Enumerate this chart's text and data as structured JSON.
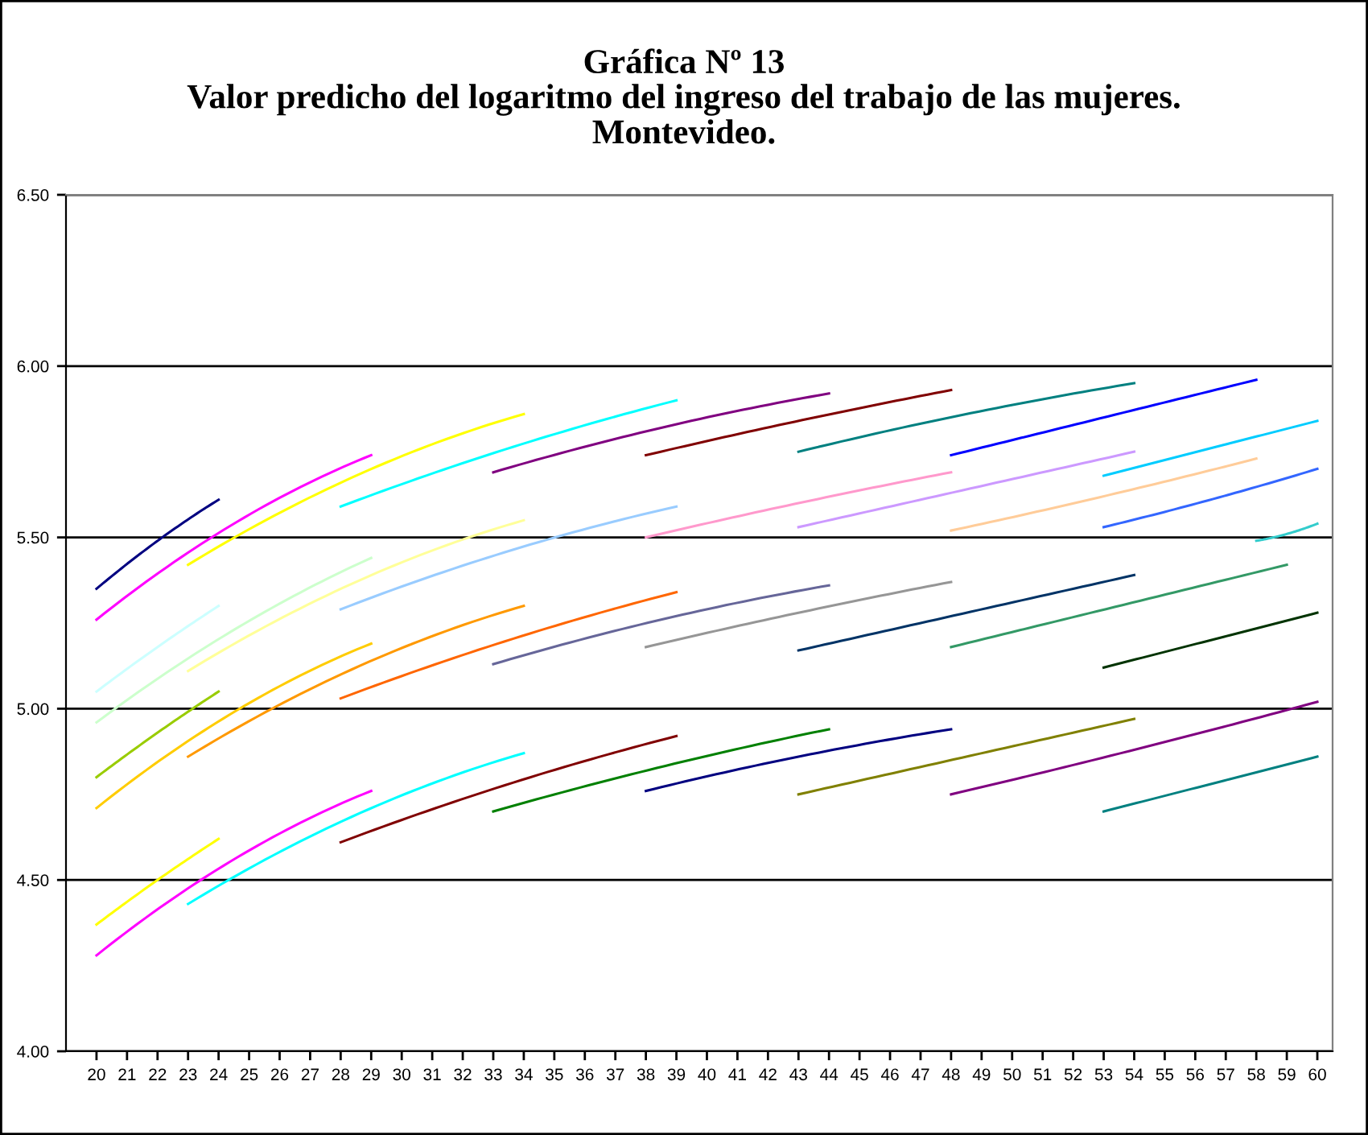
{
  "chart_data": {
    "type": "line",
    "title": "Gráfica Nº 13\nValor predicho del logaritmo del ingreso del trabajo de las mujeres.\nMontevideo.",
    "xlim": [
      19,
      60.5
    ],
    "xticks": [
      20,
      21,
      22,
      23,
      24,
      25,
      26,
      27,
      28,
      29,
      30,
      31,
      32,
      33,
      34,
      35,
      36,
      37,
      38,
      39,
      40,
      41,
      42,
      43,
      44,
      45,
      46,
      47,
      48,
      49,
      50,
      51,
      52,
      53,
      54,
      55,
      56,
      57,
      58,
      59,
      60
    ],
    "ylim": [
      4.0,
      6.5
    ],
    "yticks": [
      {
        "value": 4.0,
        "label": "4.00"
      },
      {
        "value": 4.5,
        "label": "4.50"
      },
      {
        "value": 5.0,
        "label": "5.00"
      },
      {
        "value": 5.5,
        "label": "5.50"
      },
      {
        "value": 6.0,
        "label": "6.00"
      },
      {
        "value": 6.5,
        "label": "6.50"
      }
    ],
    "grid": "y",
    "legend": false,
    "marker": "none",
    "line_style": "solid",
    "series": [
      {
        "color": "#000080",
        "x": [
          20,
          22,
          24
        ],
        "values": [
          5.35,
          5.49,
          5.61
        ]
      },
      {
        "color": "#ff00ff",
        "x": [
          20,
          24.5,
          29
        ],
        "values": [
          5.26,
          5.54,
          5.74
        ]
      },
      {
        "color": "#ccffff",
        "x": [
          20,
          22,
          24
        ],
        "values": [
          5.05,
          5.18,
          5.3
        ]
      },
      {
        "color": "#ccffcc",
        "x": [
          20,
          24.5,
          29
        ],
        "values": [
          4.96,
          5.23,
          5.44
        ]
      },
      {
        "color": "#99cc00",
        "x": [
          20,
          22,
          24
        ],
        "values": [
          4.8,
          4.93,
          5.05
        ]
      },
      {
        "color": "#ffcc00",
        "x": [
          20,
          24.5,
          29
        ],
        "values": [
          4.71,
          4.99,
          5.19
        ]
      },
      {
        "color": "#ffff00",
        "x": [
          20,
          22,
          24
        ],
        "values": [
          4.37,
          4.5,
          4.62
        ]
      },
      {
        "color": "#ff00ff",
        "x": [
          20,
          24.5,
          29
        ],
        "values": [
          4.28,
          4.56,
          4.76
        ]
      },
      {
        "color": "#ffff00",
        "x": [
          23,
          28.5,
          34
        ],
        "values": [
          5.42,
          5.68,
          5.86
        ]
      },
      {
        "color": "#ffff99",
        "x": [
          23,
          28.5,
          34
        ],
        "values": [
          5.11,
          5.37,
          5.55
        ]
      },
      {
        "color": "#ff9900",
        "x": [
          23,
          28.5,
          34
        ],
        "values": [
          4.86,
          5.12,
          5.3
        ]
      },
      {
        "color": "#00ffff",
        "x": [
          23,
          28.5,
          34
        ],
        "values": [
          4.43,
          4.69,
          4.87
        ]
      },
      {
        "color": "#00ffff",
        "x": [
          28,
          33.5,
          39
        ],
        "values": [
          5.59,
          5.76,
          5.9
        ]
      },
      {
        "color": "#99ccff",
        "x": [
          28,
          33.5,
          39
        ],
        "values": [
          5.29,
          5.46,
          5.59
        ]
      },
      {
        "color": "#ff6600",
        "x": [
          28,
          33.5,
          39
        ],
        "values": [
          5.03,
          5.2,
          5.34
        ]
      },
      {
        "color": "#800000",
        "x": [
          28,
          33.5,
          39
        ],
        "values": [
          4.61,
          4.78,
          4.92
        ]
      },
      {
        "color": "#800080",
        "x": [
          33,
          38.5,
          44
        ],
        "values": [
          5.69,
          5.82,
          5.92
        ]
      },
      {
        "color": "#666699",
        "x": [
          33,
          38.5,
          44
        ],
        "values": [
          5.13,
          5.26,
          5.36
        ]
      },
      {
        "color": "#008000",
        "x": [
          33,
          38.5,
          44
        ],
        "values": [
          4.7,
          4.83,
          4.94
        ]
      },
      {
        "color": "#800000",
        "x": [
          38,
          43,
          48
        ],
        "values": [
          5.74,
          5.84,
          5.93
        ]
      },
      {
        "color": "#ff99cc",
        "x": [
          38,
          43,
          48
        ],
        "values": [
          5.5,
          5.6,
          5.69
        ]
      },
      {
        "color": "#969696",
        "x": [
          38,
          43,
          48
        ],
        "values": [
          5.18,
          5.28,
          5.37
        ]
      },
      {
        "color": "#000080",
        "x": [
          38,
          43,
          48
        ],
        "values": [
          4.76,
          4.86,
          4.94
        ]
      },
      {
        "color": "#008080",
        "x": [
          43,
          48.5,
          54
        ],
        "values": [
          5.75,
          5.86,
          5.95
        ]
      },
      {
        "color": "#cc99ff",
        "x": [
          43,
          48.5,
          54
        ],
        "values": [
          5.53,
          5.64,
          5.75
        ]
      },
      {
        "color": "#003366",
        "x": [
          43,
          48.5,
          54
        ],
        "values": [
          5.17,
          5.28,
          5.39
        ]
      },
      {
        "color": "#808000",
        "x": [
          43,
          48.5,
          54
        ],
        "values": [
          4.75,
          4.86,
          4.97
        ]
      },
      {
        "color": "#0000ff",
        "x": [
          48,
          53,
          58
        ],
        "values": [
          5.74,
          5.85,
          5.96
        ]
      },
      {
        "color": "#ffcc99",
        "x": [
          48,
          53,
          58
        ],
        "values": [
          5.52,
          5.62,
          5.73
        ]
      },
      {
        "color": "#339966",
        "x": [
          48,
          53.5,
          59
        ],
        "values": [
          5.18,
          5.3,
          5.42
        ]
      },
      {
        "color": "#800080",
        "x": [
          48,
          54,
          60
        ],
        "values": [
          4.75,
          4.88,
          5.02
        ]
      },
      {
        "color": "#00ccff",
        "x": [
          53,
          56.5,
          60
        ],
        "values": [
          5.68,
          5.76,
          5.84
        ]
      },
      {
        "color": "#3366ff",
        "x": [
          53,
          56.5,
          60
        ],
        "values": [
          5.53,
          5.61,
          5.7
        ]
      },
      {
        "color": "#003300",
        "x": [
          53,
          56.5,
          60
        ],
        "values": [
          5.12,
          5.2,
          5.28
        ]
      },
      {
        "color": "#008080",
        "x": [
          53,
          56.5,
          60
        ],
        "values": [
          4.7,
          4.78,
          4.86
        ]
      },
      {
        "color": "#33cccc",
        "x": [
          58,
          59,
          60
        ],
        "values": [
          5.49,
          5.51,
          5.54
        ]
      }
    ]
  }
}
